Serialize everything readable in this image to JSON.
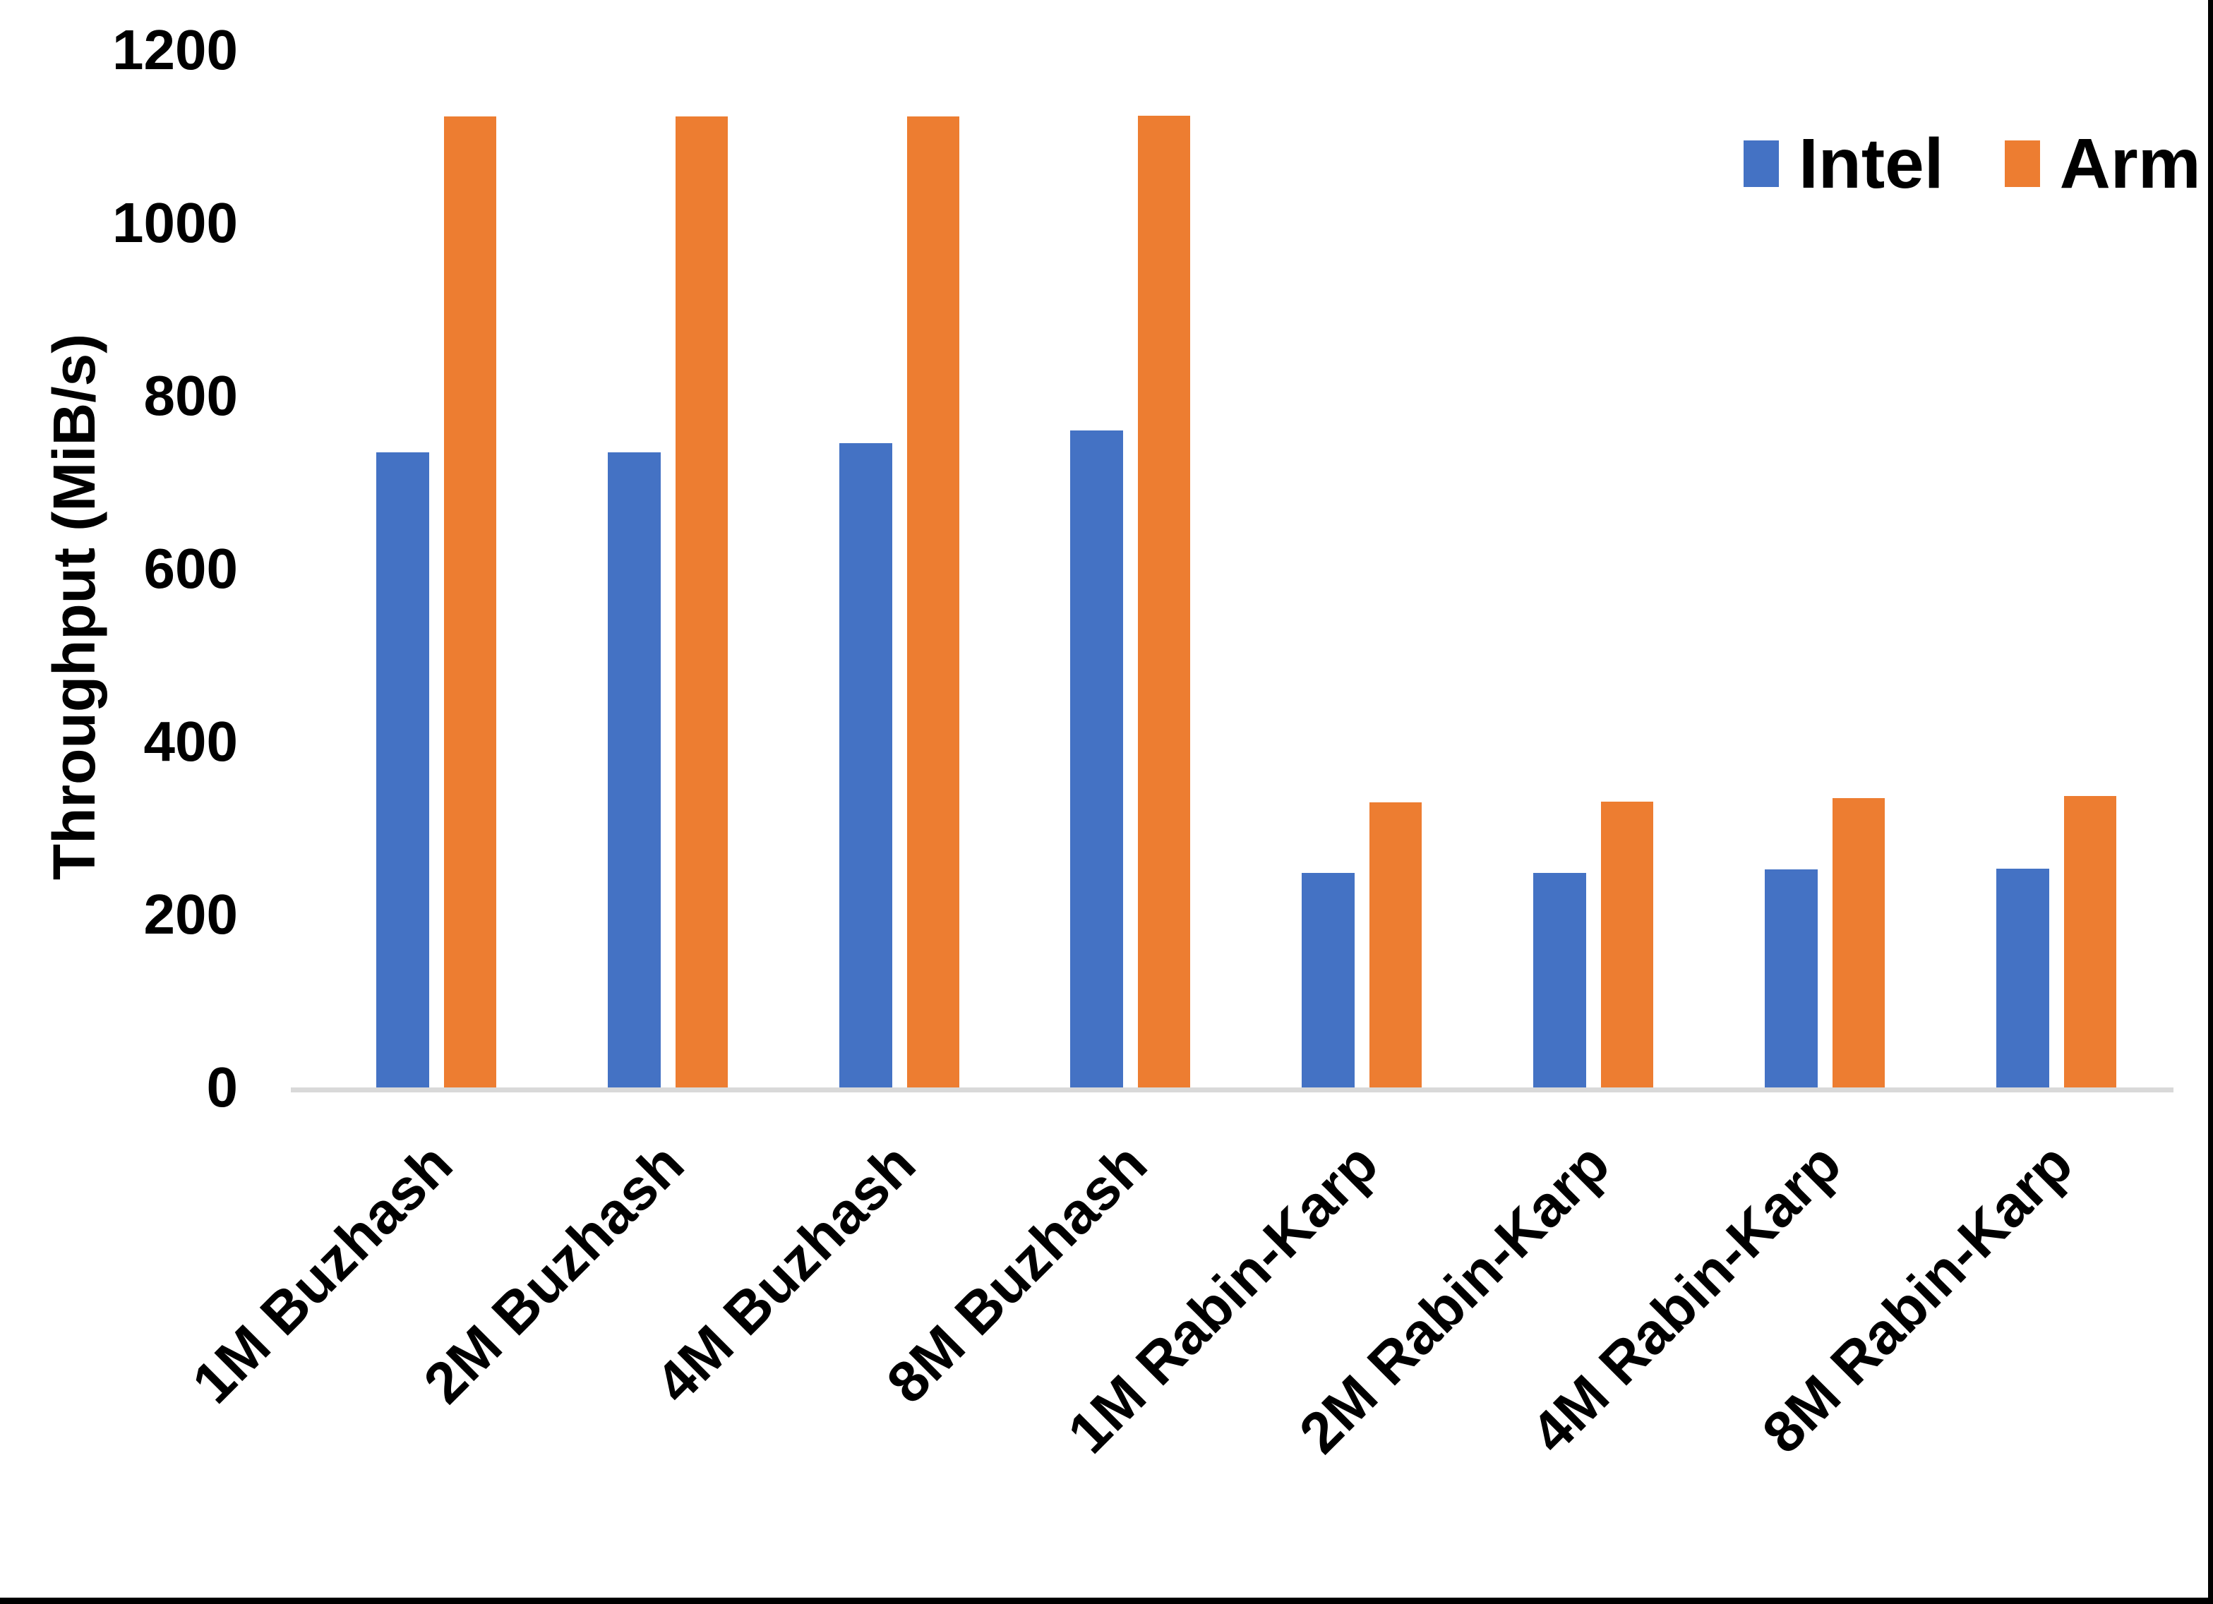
{
  "chart_data": {
    "type": "bar",
    "title": "",
    "xlabel": "",
    "ylabel": "Throughput (MiB/s)",
    "ylim": [
      0,
      1200
    ],
    "ytick_step": 200,
    "ytick_labels": [
      "1200",
      "1000",
      "800",
      "600",
      "400",
      "200",
      "0"
    ],
    "grid": false,
    "legend_position": "top-right",
    "categories": [
      "1M Buzhash",
      "2M Buzhash",
      "4M Buzhash",
      "8M Buzhash",
      "1M Rabin-Karp",
      "2M Rabin-Karp",
      "4M Rabin-Karp",
      "8M Rabin-Karp"
    ],
    "series": [
      {
        "name": "Intel",
        "color": "#4472C4",
        "values": [
          735,
          735,
          745,
          760,
          248,
          248,
          252,
          253
        ]
      },
      {
        "name": "Arm",
        "color": "#ED7D31",
        "values": [
          1123,
          1123,
          1123,
          1124,
          330,
          331,
          335,
          337
        ]
      }
    ]
  },
  "colors": {
    "intel": "#4472C4",
    "arm": "#ED7D31",
    "axis_line": "#D9D9D9",
    "text": "#000000",
    "border": "#000000",
    "background": "#FFFFFF"
  }
}
